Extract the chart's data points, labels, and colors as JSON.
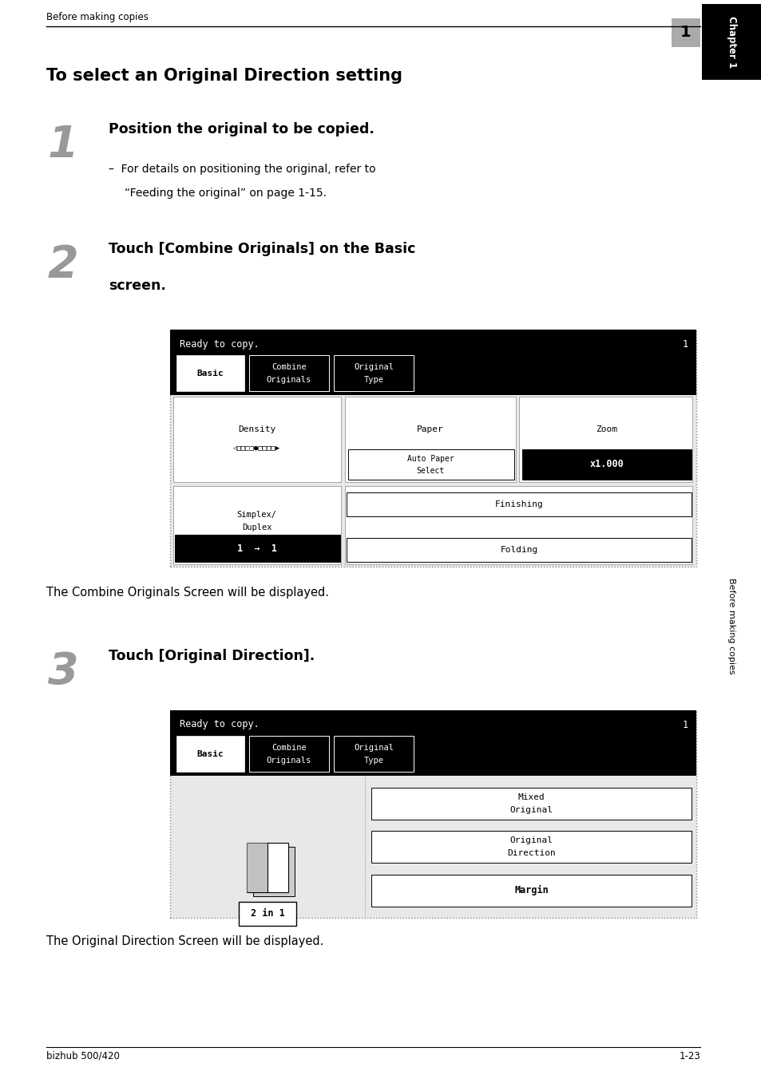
{
  "bg_color": "#ffffff",
  "page_width": 9.54,
  "page_height": 13.52,
  "header_text": "Before making copies",
  "header_number": "1",
  "title": "To select an Original Direction setting",
  "step1_number": "1",
  "step1_heading": "Position the original to be copied.",
  "step2_number": "2",
  "step2_heading_line1": "Touch [Combine Originals] on the Basic",
  "step2_heading_line2": "screen.",
  "step2_note": "The Combine Originals Screen will be displayed.",
  "step3_number": "3",
  "step3_heading": "Touch [Original Direction].",
  "step3_note": "The Original Direction Screen will be displayed.",
  "footer_left": "bizhub 500/420",
  "footer_right": "1-23",
  "sidebar_text": "Before making copies",
  "sidebar_chapter": "Chapter 1",
  "body1_line1": "–  For details on positioning the original, refer to",
  "body1_line2": "“Feeding the original” on page 1-15."
}
